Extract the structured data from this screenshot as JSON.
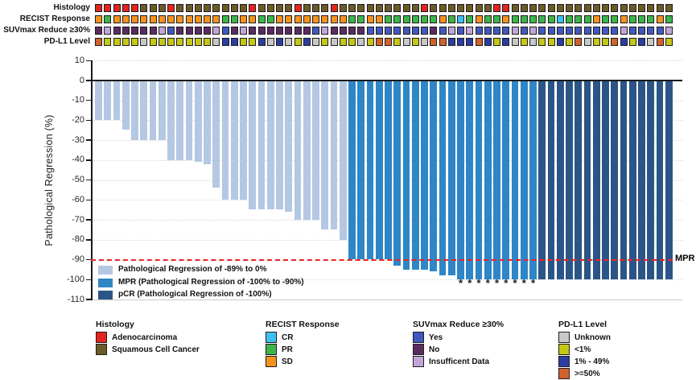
{
  "palette": {
    "adenocarcinoma_red": "#E52420",
    "squamous_brown": "#6C5B28",
    "recist_cr_cyan": "#3EC0F0",
    "recist_pr_green": "#3CB54A",
    "recist_sd_orange": "#F5921E",
    "suv_yes_blue": "#4159BE",
    "suv_no_purple": "#5B2A62",
    "suv_insufficent_lavender": "#C2A5DA",
    "pdl1_unknown_gray": "#C8C8C8",
    "pdl1_lt1_yellow": "#C5C814",
    "pdl1_1to49_blue": "#2C3DA2",
    "pdl1_ge50_rust": "#D2622B",
    "bar_light": "#B4C7E3",
    "bar_mpr": "#2E86C7",
    "bar_pcr": "#2B5586",
    "mpr_line_red": "#EE2222",
    "axis_black": "#1A1A1A"
  },
  "chart_data": {
    "type": "bar",
    "title": "",
    "ylabel": "Pathological Regression (%)",
    "ylim": [
      -110,
      10
    ],
    "yticks": [
      10,
      0,
      -10,
      -20,
      -30,
      -40,
      -50,
      -60,
      -70,
      -80,
      -90,
      -100,
      -110
    ],
    "n_patients": 64,
    "values": [
      -20,
      -20,
      -20,
      -25,
      -30,
      -30,
      -30,
      -30,
      -40,
      -40,
      -40,
      -41,
      -42,
      -54,
      -60,
      -60,
      -60,
      -65,
      -65,
      -65,
      -65,
      -66,
      -70,
      -70,
      -70,
      -75,
      -75,
      -80,
      -90,
      -90,
      -90,
      -90,
      -90,
      -93,
      -95,
      -95,
      -95,
      -96,
      -98,
      -98,
      -100,
      -100,
      -100,
      -100,
      -100,
      -100,
      -100,
      -100,
      -100,
      -100,
      -100,
      -100,
      -100,
      -100,
      -100,
      -100,
      -100,
      -100,
      -100,
      -100,
      -100,
      -100,
      -100,
      -100
    ],
    "classes_by_count": {
      "light": 28,
      "mpr": 21,
      "pcr": 15
    },
    "starred_columns": [
      41,
      42,
      43,
      44,
      45,
      46,
      47,
      48,
      49
    ],
    "star_symbol": "*",
    "mpr_line": {
      "value": -90,
      "label": "MPR"
    },
    "bar_legend": [
      {
        "label": "Pathological Regression of -89% to 0%",
        "color_key": "bar_light"
      },
      {
        "label": "MPR (Pathological Regression of -100% to -90%)",
        "color_key": "bar_mpr"
      },
      {
        "label": "pCR (Pathological Regression of -100%)",
        "color_key": "bar_pcr"
      }
    ],
    "annotation_tracks": [
      {
        "label": "Histology",
        "color_map": {
          "A": "adenocarcinoma_red",
          "S": "squamous_brown"
        },
        "values": [
          "A",
          "A",
          "A",
          "A",
          "A",
          "S",
          "S",
          "S",
          "A",
          "S",
          "S",
          "S",
          "S",
          "S",
          "S",
          "S",
          "S",
          "A",
          "S",
          "S",
          "S",
          "S",
          "A",
          "S",
          "S",
          "S",
          "A",
          "S",
          "S",
          "S",
          "S",
          "S",
          "S",
          "S",
          "S",
          "S",
          "A",
          "S",
          "S",
          "S",
          "S",
          "S",
          "S",
          "S",
          "A",
          "A",
          "S",
          "S",
          "S",
          "S",
          "S",
          "S",
          "S",
          "S",
          "S",
          "S",
          "S",
          "S",
          "S",
          "S",
          "S",
          "S",
          "S",
          "S"
        ]
      },
      {
        "label": "RECIST Response",
        "color_map": {
          "CR": "recist_cr_cyan",
          "PR": "recist_pr_green",
          "SD": "recist_sd_orange"
        },
        "values": [
          "SD",
          "PR",
          "SD",
          "SD",
          "SD",
          "SD",
          "SD",
          "SD",
          "SD",
          "SD",
          "SD",
          "SD",
          "SD",
          "SD",
          "PR",
          "PR",
          "SD",
          "SD",
          "PR",
          "PR",
          "SD",
          "SD",
          "SD",
          "SD",
          "SD",
          "SD",
          "SD",
          "SD",
          "PR",
          "PR",
          "SD",
          "SD",
          "PR",
          "PR",
          "PR",
          "PR",
          "PR",
          "PR",
          "SD",
          "PR",
          "CR",
          "PR",
          "SD",
          "PR",
          "PR",
          "SD",
          "PR",
          "PR",
          "PR",
          "PR",
          "PR",
          "CR",
          "PR",
          "PR",
          "PR",
          "SD",
          "PR",
          "PR",
          "SD",
          "PR",
          "PR",
          "PR",
          "SD",
          "PR"
        ]
      },
      {
        "label": "SUVmax Reduce ≥30%",
        "color_map": {
          "Yes": "suv_yes_blue",
          "No": "suv_no_purple",
          "ID": "suv_insufficent_lavender"
        },
        "values": [
          "No",
          "ID",
          "No",
          "No",
          "No",
          "No",
          "No",
          "ID",
          "Yes",
          "No",
          "No",
          "No",
          "No",
          "ID",
          "Yes",
          "No",
          "ID",
          "No",
          "No",
          "No",
          "No",
          "No",
          "No",
          "No",
          "Yes",
          "ID",
          "No",
          "No",
          "No",
          "No",
          "Yes",
          "Yes",
          "Yes",
          "Yes",
          "Yes",
          "Yes",
          "Yes",
          "No",
          "Yes",
          "ID",
          "Yes",
          "ID",
          "Yes",
          "Yes",
          "Yes",
          "Yes",
          "ID",
          "Yes",
          "ID",
          "Yes",
          "Yes",
          "Yes",
          "Yes",
          "Yes",
          "Yes",
          "Yes",
          "Yes",
          "Yes",
          "ID",
          "Yes",
          "Yes",
          "Yes",
          "Yes",
          "ID"
        ]
      },
      {
        "label": "PD-L1 Level",
        "color_map": {
          "U": "pdl1_unknown_gray",
          "L": "pdl1_lt1_yellow",
          "M": "pdl1_1to49_blue",
          "H": "pdl1_ge50_rust"
        },
        "values": [
          "H",
          "L",
          "L",
          "L",
          "L",
          "U",
          "L",
          "L",
          "L",
          "L",
          "L",
          "L",
          "L",
          "U",
          "M",
          "M",
          "L",
          "L",
          "M",
          "U",
          "M",
          "U",
          "L",
          "M",
          "U",
          "L",
          "U",
          "L",
          "L",
          "U",
          "L",
          "H",
          "H",
          "L",
          "U",
          "L",
          "U",
          "H",
          "H",
          "M",
          "M",
          "M",
          "H",
          "M",
          "L",
          "M",
          "U",
          "L",
          "U",
          "L",
          "L",
          "M",
          "L",
          "H",
          "U",
          "L",
          "L",
          "H",
          "M",
          "L",
          "M",
          "U",
          "H",
          "L"
        ]
      }
    ]
  },
  "legend_groups": [
    {
      "title": "Histology",
      "items": [
        {
          "label": "Adenocarcinoma",
          "color_key": "adenocarcinoma_red"
        },
        {
          "label": "Squamous Cell Cancer",
          "color_key": "squamous_brown"
        }
      ]
    },
    {
      "title": "RECIST Response",
      "items": [
        {
          "label": "CR",
          "color_key": "recist_cr_cyan"
        },
        {
          "label": "PR",
          "color_key": "recist_pr_green"
        },
        {
          "label": "SD",
          "color_key": "recist_sd_orange"
        }
      ]
    },
    {
      "title": "SUVmax Reduce ≥30%",
      "items": [
        {
          "label": "Yes",
          "color_key": "suv_yes_blue"
        },
        {
          "label": "No",
          "color_key": "suv_no_purple"
        },
        {
          "label": "Insufficent Data",
          "color_key": "suv_insufficent_lavender"
        }
      ]
    },
    {
      "title": "PD-L1 Level",
      "items": [
        {
          "label": "Unknown",
          "color_key": "pdl1_unknown_gray"
        },
        {
          "label": "<1%",
          "color_key": "pdl1_lt1_yellow"
        },
        {
          "label": "1% - 49%",
          "color_key": "pdl1_1to49_blue"
        },
        {
          "label": ">=50%",
          "color_key": "pdl1_ge50_rust"
        }
      ]
    }
  ]
}
